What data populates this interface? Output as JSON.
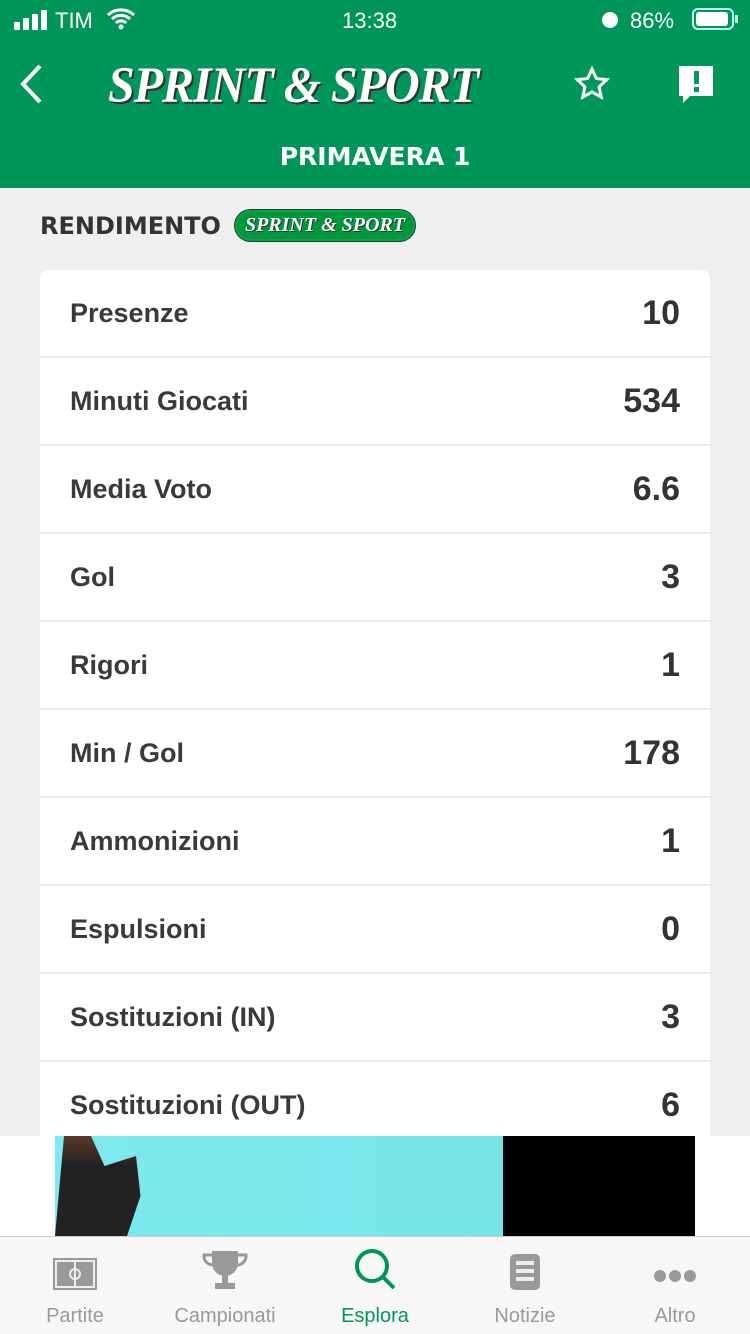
{
  "status": {
    "carrier": "TIM",
    "time": "13:38",
    "battery": "86%"
  },
  "header": {
    "logo": "SPRINT & SPORT",
    "title": "PRIMAVERA 1"
  },
  "section": {
    "title": "RENDIMENTO",
    "badge": "SPRINT & SPORT"
  },
  "stats": [
    {
      "label": "Presenze",
      "value": "10"
    },
    {
      "label": "Minuti Giocati",
      "value": "534"
    },
    {
      "label": "Media Voto",
      "value": "6.6"
    },
    {
      "label": "Gol",
      "value": "3"
    },
    {
      "label": "Rigori",
      "value": "1"
    },
    {
      "label": "Min / Gol",
      "value": "178"
    },
    {
      "label": "Ammonizioni",
      "value": "1"
    },
    {
      "label": "Espulsioni",
      "value": "0"
    },
    {
      "label": "Sostituzioni (IN)",
      "value": "3"
    },
    {
      "label": "Sostituzioni (OUT)",
      "value": "6"
    }
  ],
  "tabs": [
    {
      "label": "Partite",
      "icon": "field-icon"
    },
    {
      "label": "Campionati",
      "icon": "trophy-icon"
    },
    {
      "label": "Esplora",
      "icon": "search-icon",
      "active": true
    },
    {
      "label": "Notizie",
      "icon": "news-icon"
    },
    {
      "label": "Altro",
      "icon": "more-icon"
    }
  ],
  "colors": {
    "brand": "#00965a",
    "background": "#efefef"
  }
}
